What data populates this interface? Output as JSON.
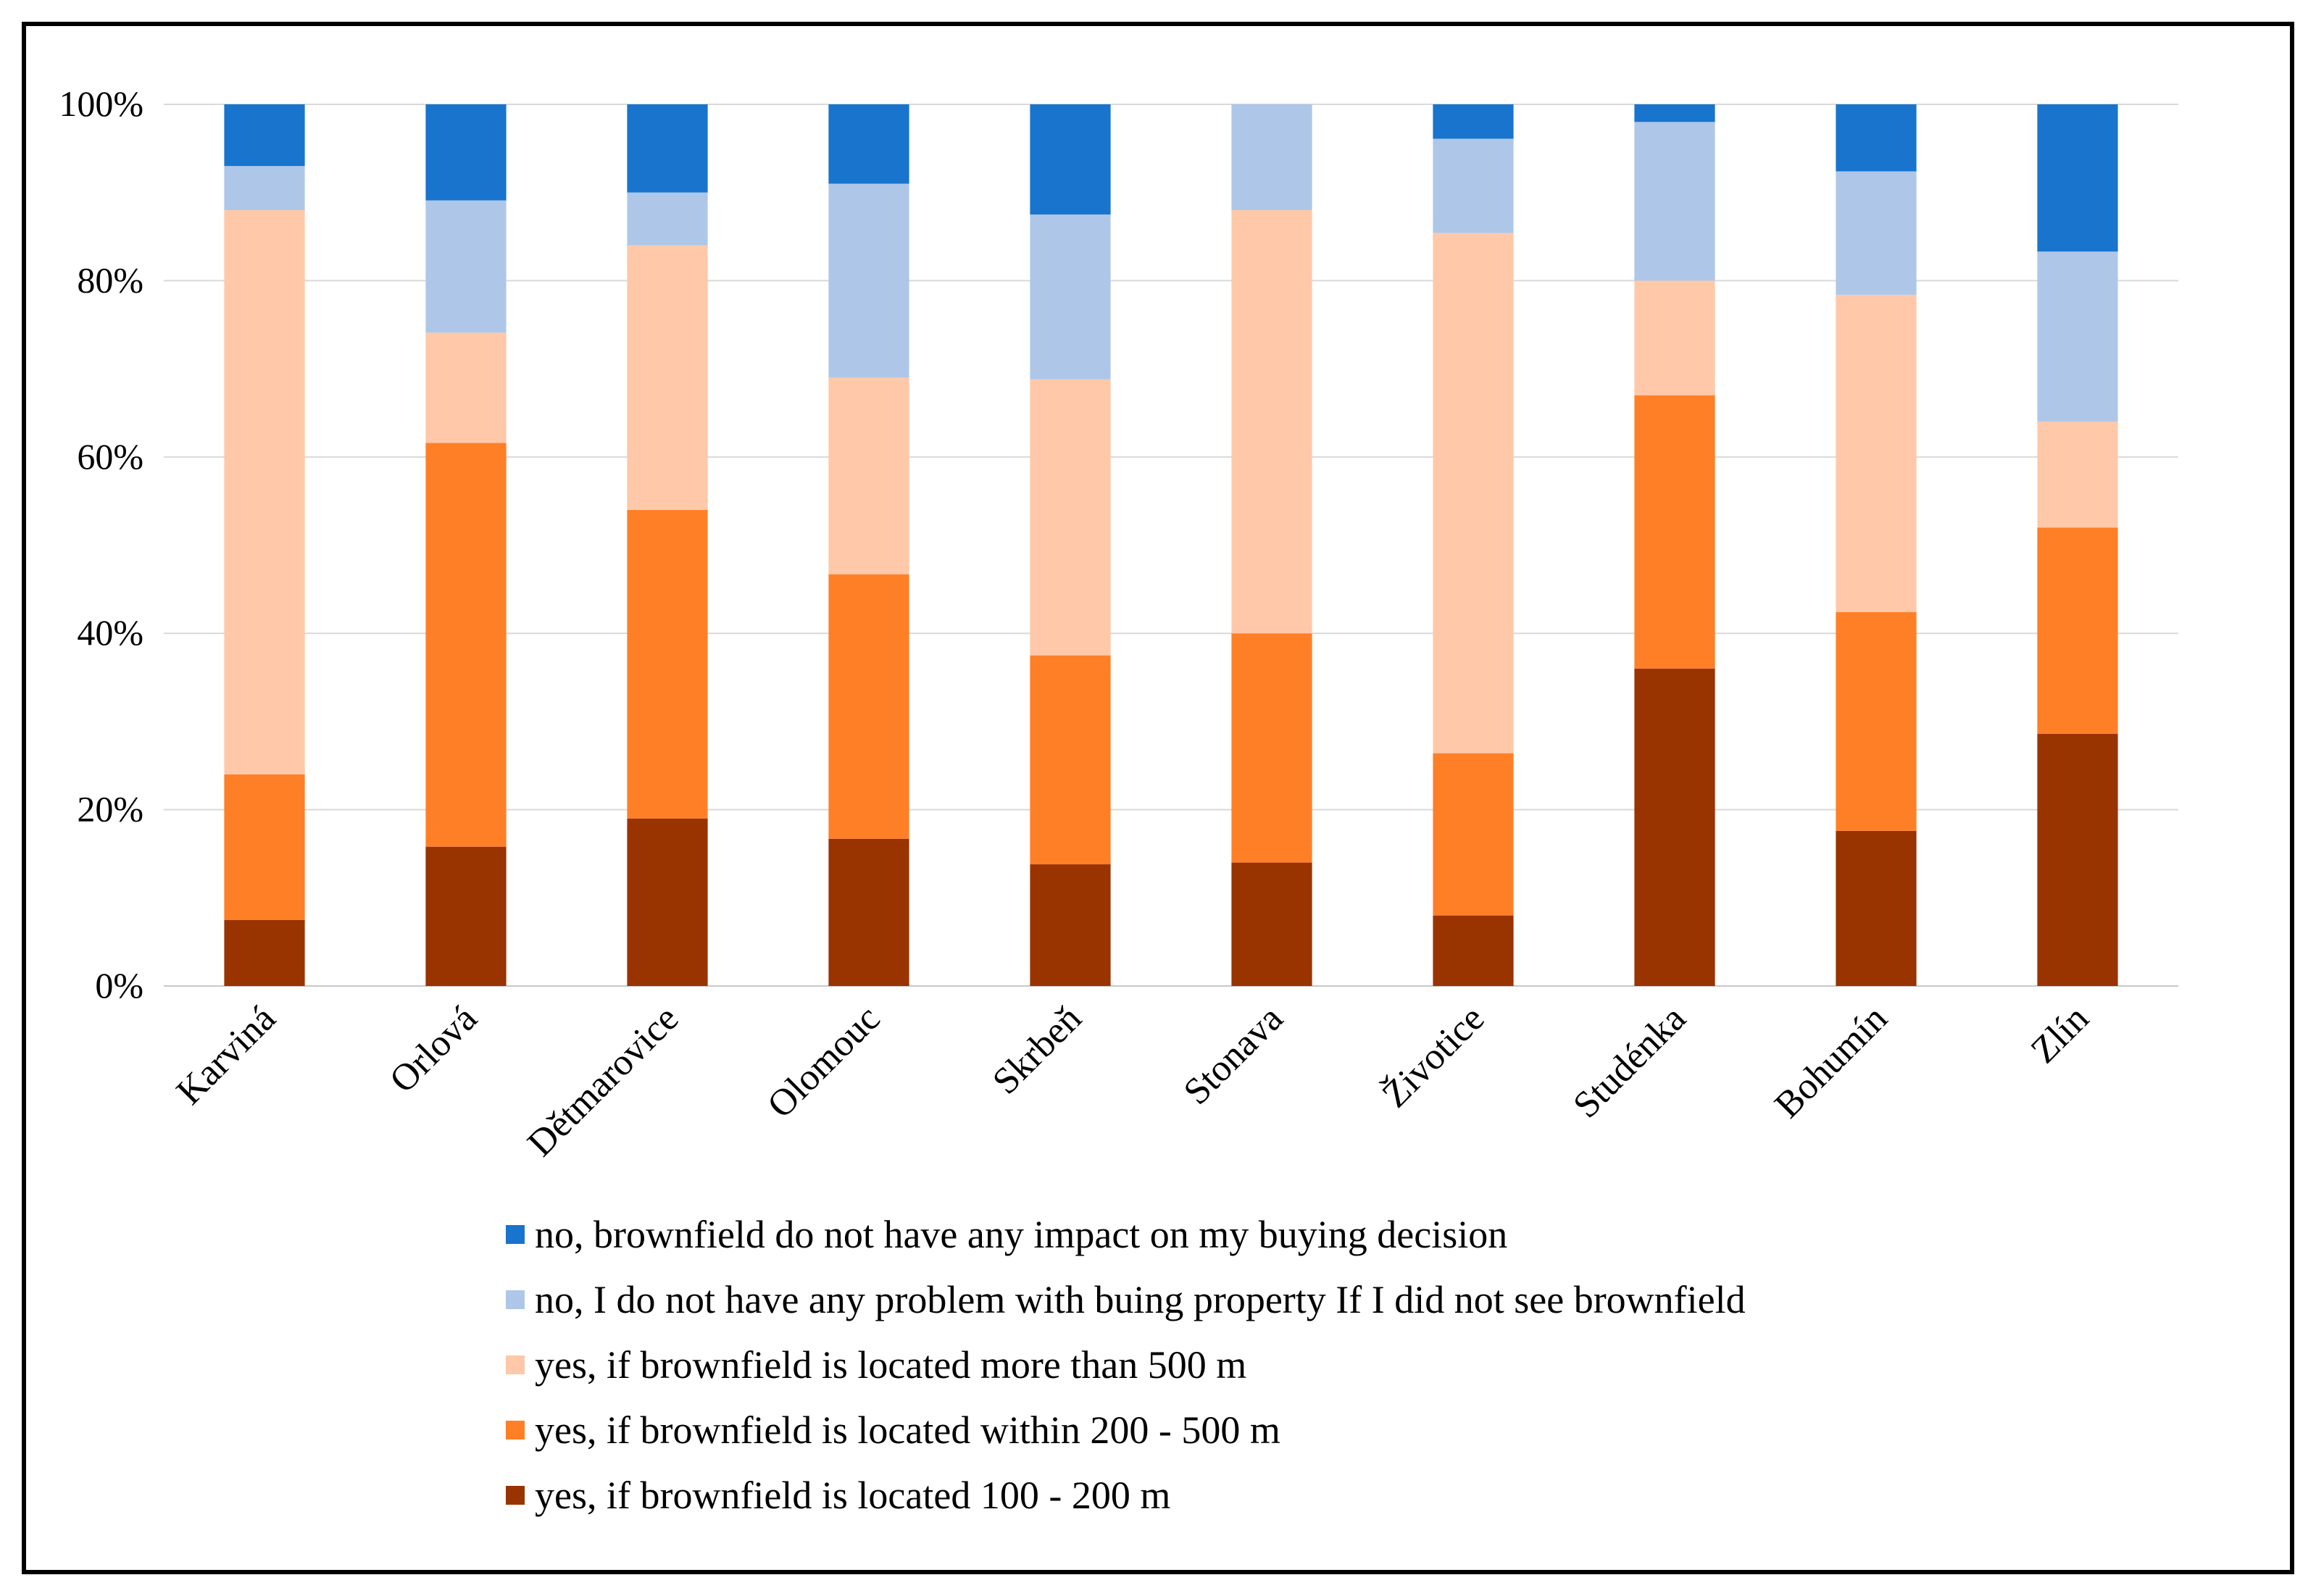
{
  "chart_data": {
    "type": "bar",
    "stacked": true,
    "percent_stacked": true,
    "title": "",
    "xlabel": "",
    "ylabel": "",
    "ylim": [
      0,
      100
    ],
    "yticks": [
      "0%",
      "20%",
      "40%",
      "60%",
      "80%",
      "100%"
    ],
    "grid": true,
    "legend_position": "bottom",
    "categories": [
      "Karviná",
      "Orlová",
      "Dětmarovice",
      "Olomouc",
      "Skrbeň",
      "Stonava",
      "Životice",
      "Studénka",
      "Bohumín",
      "Zlín"
    ],
    "series": [
      {
        "name": "yes, if brownfield is located 100 - 200 m",
        "color": "#993300",
        "values": [
          7.5,
          15.8,
          19,
          16.7,
          13.8,
          14,
          8,
          36,
          17.6,
          28.6
        ]
      },
      {
        "name": "yes, if brownfield is located within 200 - 500 m",
        "color": "#ff7f27",
        "values": [
          16.5,
          45.8,
          35,
          30,
          23.7,
          26,
          18.4,
          31,
          24.8,
          23.4
        ]
      },
      {
        "name": "yes, if brownfield is located more than 500 m",
        "color": "#ffc8a8",
        "values": [
          64,
          12.5,
          30,
          22.3,
          31.3,
          48,
          59,
          13,
          36,
          12
        ]
      },
      {
        "name": "no, I do not have any problem with buing property If I did not see brownfield",
        "color": "#aec7e8",
        "values": [
          5,
          15,
          6,
          22,
          18.7,
          12,
          10.7,
          18,
          14,
          19.3
        ]
      },
      {
        "name": "no, brownfield do not have any impact on my buying decision",
        "color": "#1874cd",
        "values": [
          7,
          10.9,
          10,
          9,
          12.5,
          0,
          3.9,
          2,
          7.6,
          16.7
        ]
      }
    ],
    "legend_order": [
      4,
      3,
      2,
      1,
      0
    ]
  }
}
